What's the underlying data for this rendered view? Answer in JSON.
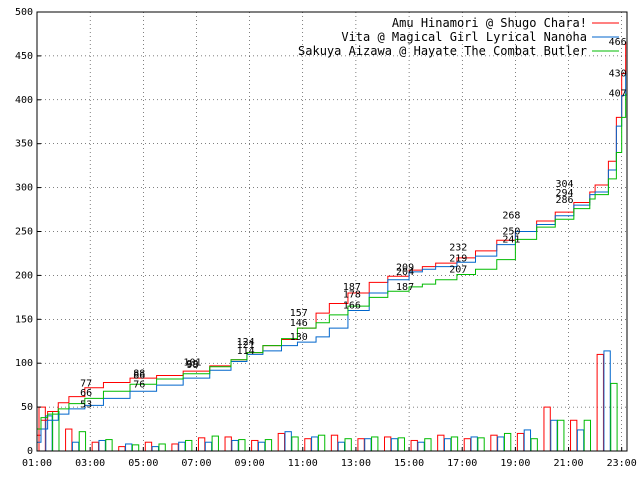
{
  "chart_data": {
    "type": "line",
    "title": "",
    "xlabel": "",
    "ylabel": "",
    "x_ticks": [
      "01:00",
      "03:00",
      "05:00",
      "07:00",
      "09:00",
      "11:00",
      "13:00",
      "15:00",
      "17:00",
      "19:00",
      "21:00",
      "23:00"
    ],
    "y_ticks": [
      0,
      50,
      100,
      150,
      200,
      250,
      300,
      350,
      400,
      450,
      500
    ],
    "xlim": [
      0,
      22.2
    ],
    "ylim": [
      0,
      500
    ],
    "grid": true,
    "legend_position": "top-right",
    "series": [
      {
        "name": "Amu Hinamori @ Shugo Chara!",
        "color": "#ff0000",
        "points": [
          [
            0,
            18
          ],
          [
            0.15,
            35
          ],
          [
            0.4,
            45
          ],
          [
            0.8,
            55
          ],
          [
            1.2,
            62
          ],
          [
            1.8,
            72
          ],
          [
            2.5,
            78
          ],
          [
            3.5,
            83
          ],
          [
            4.5,
            86
          ],
          [
            5.5,
            91
          ],
          [
            6.5,
            97
          ],
          [
            7.3,
            104
          ],
          [
            7.9,
            112
          ],
          [
            8.5,
            120
          ],
          [
            9.2,
            127
          ],
          [
            9.8,
            140
          ],
          [
            10.5,
            157
          ],
          [
            11.0,
            168
          ],
          [
            11.7,
            180
          ],
          [
            12.5,
            192
          ],
          [
            13.2,
            199
          ],
          [
            14.0,
            206
          ],
          [
            14.5,
            210
          ],
          [
            15.0,
            214
          ],
          [
            15.8,
            220
          ],
          [
            16.5,
            228
          ],
          [
            17.3,
            240
          ],
          [
            18.0,
            250
          ],
          [
            18.8,
            262
          ],
          [
            19.5,
            272
          ],
          [
            20.2,
            283
          ],
          [
            20.8,
            295
          ],
          [
            21.0,
            303
          ],
          [
            21.5,
            330
          ],
          [
            21.8,
            380
          ],
          [
            22.0,
            430
          ],
          [
            22.15,
            466
          ]
        ],
        "labels": [
          {
            "x": 2.0,
            "y": 77,
            "text": "77"
          },
          {
            "x": 4.0,
            "y": 88,
            "text": "88"
          },
          {
            "x": 6.0,
            "y": 101,
            "text": "101"
          },
          {
            "x": 8.0,
            "y": 124,
            "text": "124"
          },
          {
            "x": 10.0,
            "y": 157,
            "text": "157"
          },
          {
            "x": 12.0,
            "y": 187,
            "text": "187"
          },
          {
            "x": 14.0,
            "y": 209,
            "text": "209"
          },
          {
            "x": 16.0,
            "y": 232,
            "text": "232"
          },
          {
            "x": 18.0,
            "y": 268,
            "text": "268"
          },
          {
            "x": 20.0,
            "y": 304,
            "text": "304"
          },
          {
            "x": 22.0,
            "y": 466,
            "text": "466"
          }
        ]
      },
      {
        "name": "Vita @ Magical Girl Lyrical Nanoha",
        "color": "#0066cc",
        "points": [
          [
            0,
            10
          ],
          [
            0.15,
            25
          ],
          [
            0.4,
            35
          ],
          [
            0.8,
            42
          ],
          [
            1.2,
            48
          ],
          [
            1.8,
            52
          ],
          [
            2.5,
            60
          ],
          [
            3.5,
            68
          ],
          [
            4.5,
            75
          ],
          [
            5.5,
            83
          ],
          [
            6.5,
            92
          ],
          [
            7.3,
            102
          ],
          [
            7.9,
            110
          ],
          [
            8.5,
            114
          ],
          [
            9.2,
            120
          ],
          [
            9.8,
            124
          ],
          [
            10.5,
            130
          ],
          [
            11.0,
            140
          ],
          [
            11.7,
            160
          ],
          [
            12.5,
            180
          ],
          [
            13.2,
            195
          ],
          [
            14.0,
            204
          ],
          [
            14.5,
            207
          ],
          [
            15.0,
            210
          ],
          [
            15.8,
            215
          ],
          [
            16.5,
            222
          ],
          [
            17.3,
            235
          ],
          [
            18.0,
            250
          ],
          [
            18.8,
            258
          ],
          [
            19.5,
            268
          ],
          [
            20.2,
            280
          ],
          [
            20.8,
            292
          ],
          [
            21.0,
            295
          ],
          [
            21.5,
            320
          ],
          [
            21.8,
            370
          ],
          [
            22.0,
            405
          ],
          [
            22.15,
            430
          ]
        ],
        "labels": [
          {
            "x": 2.0,
            "y": 53,
            "text": "53"
          },
          {
            "x": 4.0,
            "y": 76,
            "text": "76"
          },
          {
            "x": 6.0,
            "y": 98,
            "text": "98"
          },
          {
            "x": 8.0,
            "y": 114,
            "text": "114"
          },
          {
            "x": 10.0,
            "y": 130,
            "text": "130"
          },
          {
            "x": 12.0,
            "y": 178,
            "text": "178"
          },
          {
            "x": 14.0,
            "y": 204,
            "text": "204"
          },
          {
            "x": 16.0,
            "y": 219,
            "text": "219"
          },
          {
            "x": 18.0,
            "y": 250,
            "text": "250"
          },
          {
            "x": 20.0,
            "y": 294,
            "text": "294"
          },
          {
            "x": 22.0,
            "y": 430,
            "text": "430"
          }
        ]
      },
      {
        "name": "Sakuya Aizawa @ Hayate The Combat Butler",
        "color": "#00bb00",
        "points": [
          [
            0,
            25
          ],
          [
            0.15,
            38
          ],
          [
            0.4,
            42
          ],
          [
            0.8,
            48
          ],
          [
            1.2,
            54
          ],
          [
            1.8,
            60
          ],
          [
            2.5,
            68
          ],
          [
            3.5,
            76
          ],
          [
            4.5,
            82
          ],
          [
            5.5,
            88
          ],
          [
            6.5,
            96
          ],
          [
            7.3,
            104
          ],
          [
            7.9,
            112
          ],
          [
            8.5,
            120
          ],
          [
            9.2,
            128
          ],
          [
            9.8,
            140
          ],
          [
            10.5,
            146
          ],
          [
            11.0,
            155
          ],
          [
            11.7,
            165
          ],
          [
            12.5,
            175
          ],
          [
            13.2,
            182
          ],
          [
            14.0,
            187
          ],
          [
            14.5,
            190
          ],
          [
            15.0,
            195
          ],
          [
            15.8,
            201
          ],
          [
            16.5,
            207
          ],
          [
            17.3,
            218
          ],
          [
            18.0,
            241
          ],
          [
            18.8,
            255
          ],
          [
            19.5,
            264
          ],
          [
            20.2,
            276
          ],
          [
            20.8,
            287
          ],
          [
            21.0,
            292
          ],
          [
            21.5,
            310
          ],
          [
            21.8,
            340
          ],
          [
            22.0,
            380
          ],
          [
            22.15,
            407
          ]
        ],
        "labels": [
          {
            "x": 2.0,
            "y": 66,
            "text": "66"
          },
          {
            "x": 4.0,
            "y": 86,
            "text": "86"
          },
          {
            "x": 6.0,
            "y": 99,
            "text": "99"
          },
          {
            "x": 8.0,
            "y": 121,
            "text": "121"
          },
          {
            "x": 10.0,
            "y": 146,
            "text": "146"
          },
          {
            "x": 12.0,
            "y": 166,
            "text": "166"
          },
          {
            "x": 14.0,
            "y": 187,
            "text": "187"
          },
          {
            "x": 16.0,
            "y": 207,
            "text": "207"
          },
          {
            "x": 18.0,
            "y": 241,
            "text": "241"
          },
          {
            "x": 20.0,
            "y": 286,
            "text": "286"
          },
          {
            "x": 22.0,
            "y": 407,
            "text": "407"
          }
        ]
      }
    ],
    "hourly_bars": [
      {
        "series": 0,
        "values": [
          50,
          25,
          10,
          5,
          10,
          8,
          15,
          16,
          12,
          20,
          14,
          18,
          14,
          16,
          12,
          18,
          14,
          18,
          20,
          50,
          35,
          110
        ]
      },
      {
        "series": 1,
        "values": [
          40,
          10,
          12,
          8,
          5,
          10,
          10,
          12,
          10,
          22,
          16,
          10,
          14,
          14,
          10,
          14,
          16,
          16,
          24,
          35,
          24,
          114
        ]
      },
      {
        "series": 2,
        "values": [
          45,
          22,
          13,
          7,
          8,
          12,
          17,
          13,
          13,
          16,
          18,
          14,
          16,
          15,
          14,
          16,
          15,
          20,
          14,
          35,
          35,
          77
        ]
      }
    ]
  }
}
